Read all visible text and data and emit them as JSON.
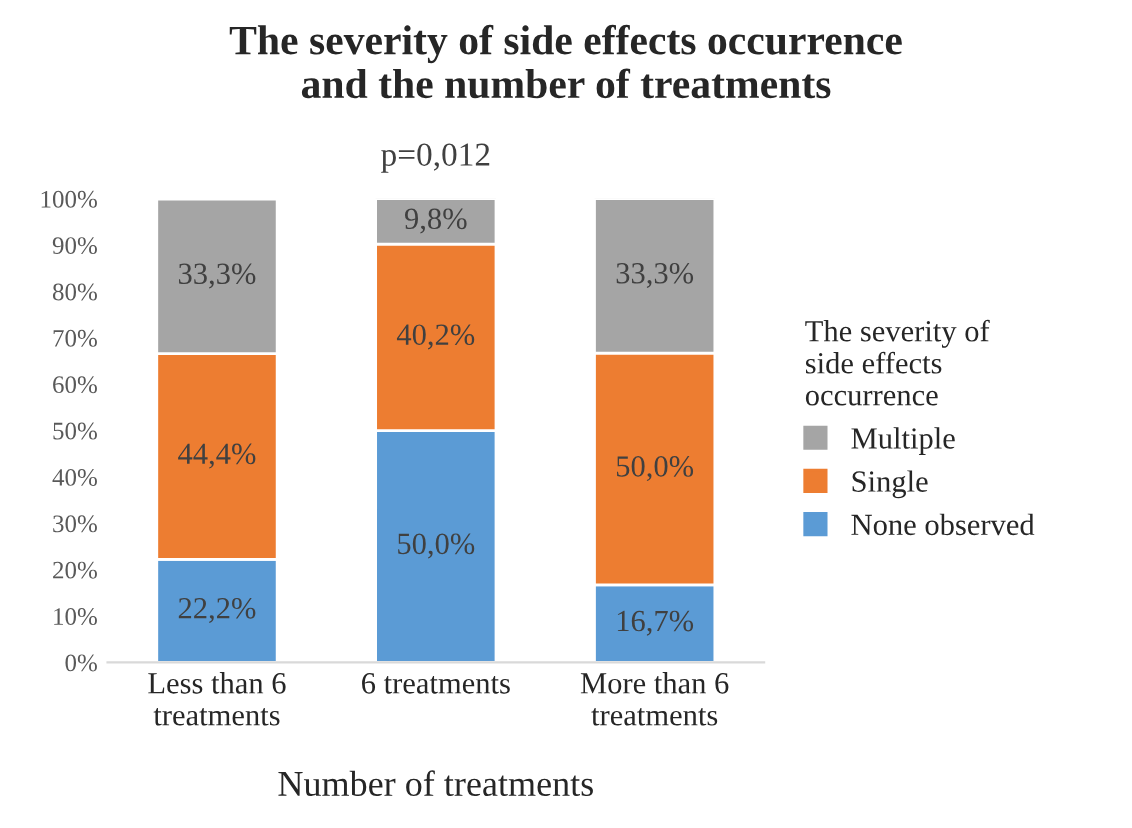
{
  "chart_data": {
    "type": "bar",
    "stacked": true,
    "title": "The severity of side effects occurrence\nand the number of treatments",
    "xlabel": "Number of treatments",
    "legend_title": "The severity of\nside effects\noccurrence",
    "legend": "right",
    "grid": false,
    "annotations": [
      "p=0,012"
    ],
    "categories": [
      "Less than 6\ntreatments",
      "6 treatments",
      "More than 6\ntreatments"
    ],
    "ylim": [
      0,
      100
    ],
    "yticks": [
      {
        "value": 0,
        "label": "0%"
      },
      {
        "value": 10,
        "label": "10%"
      },
      {
        "value": 20,
        "label": "20%"
      },
      {
        "value": 30,
        "label": "30%"
      },
      {
        "value": 40,
        "label": "40%"
      },
      {
        "value": 50,
        "label": "50%"
      },
      {
        "value": 60,
        "label": "60%"
      },
      {
        "value": 70,
        "label": "70%"
      },
      {
        "value": 80,
        "label": "80%"
      },
      {
        "value": 90,
        "label": "90%"
      },
      {
        "value": 100,
        "label": "100%"
      }
    ],
    "series": [
      {
        "name": "None observed",
        "color": "#5b9bd5",
        "values": [
          22.2,
          50.0,
          16.7
        ],
        "value_labels": [
          "22,2%",
          "50,0%",
          "16,7%"
        ]
      },
      {
        "name": "Single",
        "color": "#ed7d31",
        "values": [
          44.4,
          40.2,
          50.0
        ],
        "value_labels": [
          "44,4%",
          "40,2%",
          "50,0%"
        ]
      },
      {
        "name": "Multiple",
        "color": "#a5a5a5",
        "values": [
          33.3,
          9.8,
          33.3
        ],
        "value_labels": [
          "33,3%",
          "9,8%",
          "33,3%"
        ]
      }
    ]
  }
}
